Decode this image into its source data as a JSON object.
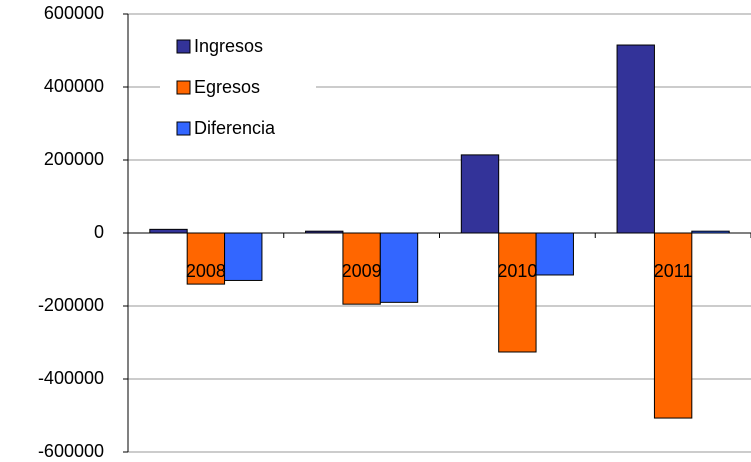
{
  "chart_data": {
    "type": "bar",
    "categories": [
      "2008",
      "2009",
      "2010",
      "2011"
    ],
    "series": [
      {
        "name": "Ingresos",
        "color": "#333399",
        "values": [
          10000,
          5000,
          214000,
          515000
        ]
      },
      {
        "name": "Egresos",
        "color": "#FF6600",
        "values": [
          -140000,
          -195000,
          -326000,
          -507000
        ]
      },
      {
        "name": "Diferencia",
        "color": "#3366FF",
        "values": [
          -130000,
          -190000,
          -115000,
          5000
        ]
      }
    ],
    "ylim": [
      -600000,
      600000
    ],
    "yticks": [
      -600000,
      -400000,
      -200000,
      0,
      200000,
      400000,
      600000
    ],
    "grid": true,
    "legend": "top-left"
  }
}
